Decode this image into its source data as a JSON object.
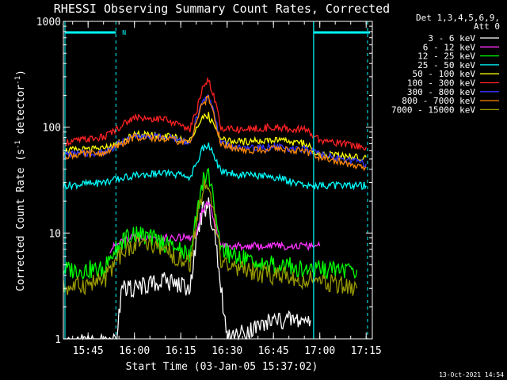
{
  "chart_data": {
    "type": "line",
    "title": "RHESSI Observing Summary Count Rates, Corrected",
    "xlabel": "Start Time (03-Jan-05 15:37:02)",
    "ylabel_main": "Corrected Count Rate (s",
    "ylabel_sup1": "-1",
    "ylabel_mid": " detector",
    "ylabel_sup2": "-1",
    "ylabel_end": ")",
    "y_scale": "log",
    "ylim": [
      1,
      1000
    ],
    "xlim": [
      "15:37",
      "17:17"
    ],
    "x_ticks": [
      "15:45",
      "16:00",
      "16:15",
      "16:30",
      "16:45",
      "17:00",
      "17:15"
    ],
    "y_ticks": [
      "1",
      "10",
      "100",
      "1000"
    ],
    "legend_header": [
      "Det 1,3,4,5,6,9,",
      "Att 0"
    ],
    "legend_position": "right",
    "footer": "13-Oct-2021 14:54",
    "night_marker": "N",
    "series": [
      {
        "name": "3 - 6 keV",
        "color": "#ffffff",
        "x": [
          "15:37",
          "15:54",
          "15:56",
          "16:00",
          "16:10",
          "16:18",
          "16:20",
          "16:22",
          "16:24",
          "16:26",
          "16:28",
          "16:30",
          "16:45",
          "16:57"
        ],
        "y": [
          0.9,
          0.9,
          3,
          3,
          3.5,
          3,
          8,
          16,
          18,
          10,
          3,
          1,
          1.5,
          1.5
        ]
      },
      {
        "name": "6 - 12 keV",
        "color": "#ff33ff",
        "x": [
          "15:52",
          "15:58",
          "16:10",
          "16:20",
          "16:22",
          "16:24",
          "16:26",
          "16:28",
          "16:30",
          "16:45",
          "17:00"
        ],
        "y": [
          7,
          9,
          9,
          9,
          16,
          20,
          12,
          8,
          7.5,
          7.5,
          7.5
        ]
      },
      {
        "name": "12 - 25 keV",
        "color": "#00ff00",
        "x": [
          "15:37",
          "15:50",
          "15:55",
          "16:00",
          "16:10",
          "16:18",
          "16:20",
          "16:22",
          "16:24",
          "16:26",
          "16:28",
          "16:32",
          "16:45",
          "17:00",
          "17:12"
        ],
        "y": [
          4.5,
          4.5,
          8,
          10,
          8,
          6,
          14,
          30,
          36,
          16,
          7,
          6,
          5,
          4.5,
          4.5
        ]
      },
      {
        "name": "25 - 50 keV",
        "color": "#00ffff",
        "x": [
          "15:37",
          "15:50",
          "16:00",
          "16:10",
          "16:18",
          "16:20",
          "16:22",
          "16:24",
          "16:26",
          "16:28",
          "16:35",
          "16:45",
          "16:55",
          "17:15"
        ],
        "y": [
          28,
          30,
          35,
          37,
          34,
          45,
          62,
          70,
          50,
          38,
          35,
          34,
          28,
          28
        ]
      },
      {
        "name": "50 - 100 keV",
        "color": "#ffff00",
        "x": [
          "15:37",
          "15:50",
          "16:00",
          "16:10",
          "16:18",
          "16:20",
          "16:22",
          "16:24",
          "16:26",
          "16:28",
          "16:35",
          "16:45",
          "16:55",
          "17:00",
          "17:15"
        ],
        "y": [
          60,
          62,
          85,
          82,
          75,
          95,
          120,
          130,
          95,
          75,
          72,
          75,
          70,
          55,
          52
        ]
      },
      {
        "name": "100 - 300 keV",
        "color": "#ff2222",
        "x": [
          "15:37",
          "15:50",
          "16:00",
          "16:10",
          "16:18",
          "16:20",
          "16:22",
          "16:24",
          "16:26",
          "16:28",
          "16:35",
          "16:45",
          "16:55",
          "17:00",
          "17:15"
        ],
        "y": [
          72,
          80,
          125,
          118,
          95,
          140,
          230,
          280,
          180,
          98,
          95,
          100,
          95,
          75,
          65
        ]
      },
      {
        "name": "300 - 800 keV",
        "color": "#3333ff",
        "x": [
          "15:37",
          "15:50",
          "16:00",
          "16:10",
          "16:18",
          "16:20",
          "16:22",
          "16:24",
          "16:26",
          "16:28",
          "16:35",
          "16:45",
          "16:55",
          "17:00",
          "17:15"
        ],
        "y": [
          55,
          58,
          82,
          80,
          72,
          120,
          170,
          200,
          130,
          70,
          62,
          65,
          62,
          55,
          45
        ]
      },
      {
        "name": "800 - 7000 keV",
        "color": "#ff8800",
        "x": [
          "15:37",
          "15:50",
          "16:00",
          "16:10",
          "16:18",
          "16:20",
          "16:22",
          "16:24",
          "16:26",
          "16:28",
          "16:35",
          "16:45",
          "16:55",
          "17:00",
          "17:15"
        ],
        "y": [
          54,
          57,
          80,
          78,
          70,
          115,
          165,
          190,
          125,
          68,
          60,
          62,
          60,
          52,
          42
        ]
      },
      {
        "name": "7000 - 15000 keV",
        "color": "#999900",
        "x": [
          "15:37",
          "15:50",
          "15:55",
          "16:00",
          "16:10",
          "16:18",
          "16:20",
          "16:22",
          "16:24",
          "16:26",
          "16:28",
          "16:32",
          "16:45",
          "17:00",
          "17:12"
        ],
        "y": [
          3,
          3.5,
          6,
          8,
          7,
          5,
          12,
          25,
          30,
          13,
          5.5,
          4.5,
          4,
          3.5,
          3
        ]
      }
    ]
  }
}
